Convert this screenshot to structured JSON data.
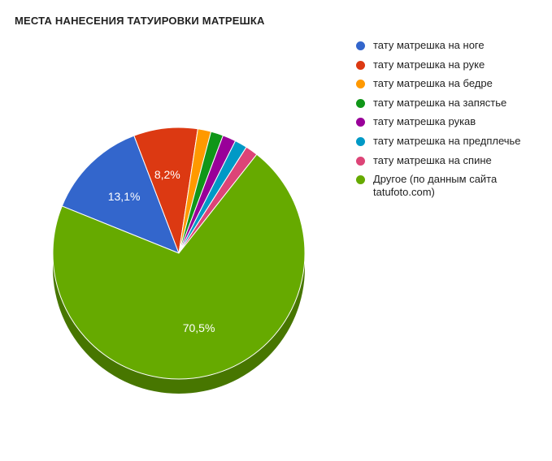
{
  "title": "МЕСТА НАНЕСЕНИЯ ТАТУИРОВКИ МАТРЕШКА",
  "chart": {
    "type": "pie",
    "slices": [
      {
        "label": "тату матрешка на ноге",
        "value": 13.1,
        "color": "#3366cc",
        "show_label": true,
        "display": "13,1%"
      },
      {
        "label": "тату матрешка на руке",
        "value": 8.2,
        "color": "#dc3912",
        "show_label": true,
        "display": "8,2%"
      },
      {
        "label": "тату матрешка на бедре",
        "value": 1.7,
        "color": "#ff9900",
        "show_label": false
      },
      {
        "label": "тату матрешка на запястье",
        "value": 1.6,
        "color": "#109618",
        "show_label": false
      },
      {
        "label": "тату матрешка рукав",
        "value": 1.7,
        "color": "#990099",
        "show_label": false
      },
      {
        "label": "тату матрешка на предплечье",
        "value": 1.6,
        "color": "#0099c6",
        "show_label": false
      },
      {
        "label": "тату матрешка на спине",
        "value": 1.6,
        "color": "#dd4477",
        "show_label": false
      },
      {
        "label": "Другое (по данным сайта tatufoto.com)",
        "value": 70.5,
        "color": "#66aa00",
        "show_label": true,
        "display": "70,5%"
      }
    ],
    "background_color": "#ffffff",
    "start_angle_deg": -68,
    "radius": 155,
    "depth": 18,
    "label_color": "#ffffff",
    "label_fontsize": 14,
    "legend_fontsize": 13,
    "title_fontsize": 13,
    "title_fontweight": "bold"
  }
}
